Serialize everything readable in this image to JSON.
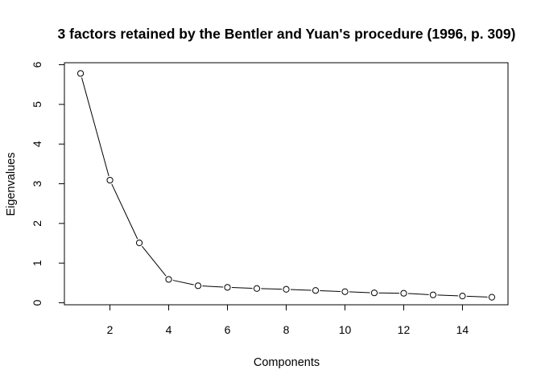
{
  "chart_data": {
    "type": "line",
    "title": "3 factors retained by the Bentler and Yuan's procedure (1996, p. 309)",
    "xlabel": "Components",
    "ylabel": "Eigenvalues",
    "xlim": [
      0.45,
      15.55
    ],
    "ylim": [
      -0.05,
      6.05
    ],
    "xticks": [
      2,
      4,
      6,
      8,
      10,
      12,
      14
    ],
    "yticks": [
      0,
      1,
      2,
      3,
      4,
      5,
      6
    ],
    "grid": false,
    "marker": "open-circle",
    "line_color": "#000000",
    "x": [
      1,
      2,
      3,
      4,
      5,
      6,
      7,
      8,
      9,
      10,
      11,
      12,
      13,
      14,
      15
    ],
    "y": [
      5.78,
      3.09,
      1.51,
      0.59,
      0.43,
      0.39,
      0.36,
      0.34,
      0.31,
      0.28,
      0.25,
      0.24,
      0.2,
      0.17,
      0.14
    ]
  }
}
